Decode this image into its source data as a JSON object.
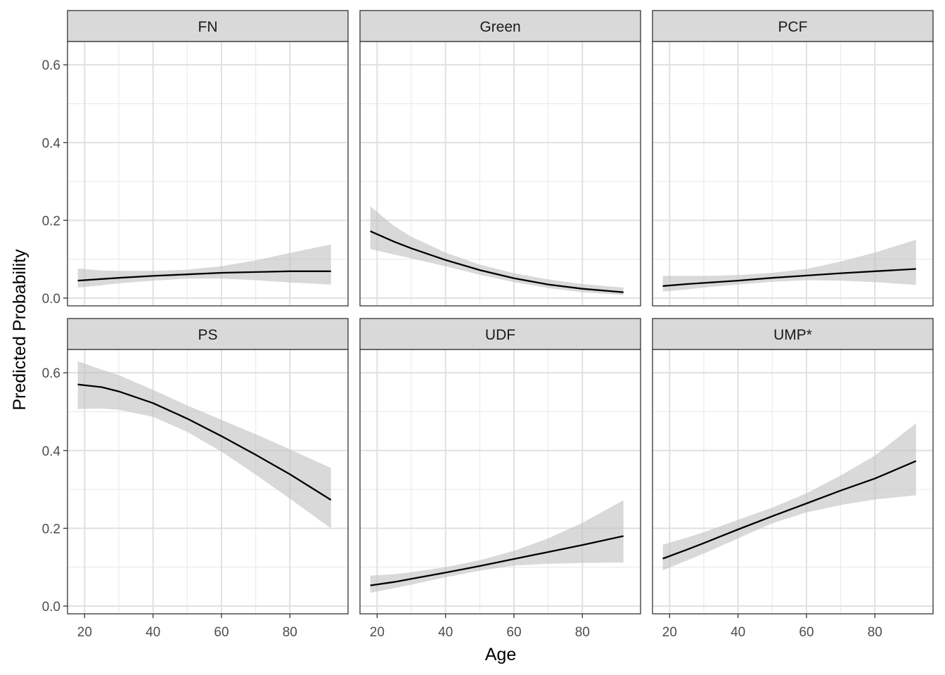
{
  "chart_data": {
    "type": "line",
    "layout": "facet-grid",
    "xlabel": "Age",
    "ylabel": "Predicted Probability",
    "xlim": [
      15,
      97
    ],
    "ylim": [
      -0.02,
      0.66
    ],
    "x_ticks": [
      20,
      40,
      60,
      80
    ],
    "y_ticks": [
      0.0,
      0.2,
      0.4,
      0.6
    ],
    "y_tick_labels": [
      "0.0",
      "0.2",
      "0.4",
      "0.6"
    ],
    "grid": true,
    "line_color": "#000000",
    "ribbon_color": "#bfbfbf",
    "strip_color": "#d9d9d9",
    "x": [
      18,
      25,
      30,
      40,
      50,
      60,
      70,
      80,
      92
    ],
    "panels": [
      {
        "name": "FN",
        "y": [
          0.045,
          0.049,
          0.052,
          0.057,
          0.061,
          0.065,
          0.067,
          0.069,
          0.069
        ],
        "lower": [
          0.027,
          0.033,
          0.038,
          0.045,
          0.05,
          0.05,
          0.046,
          0.04,
          0.035
        ],
        "upper": [
          0.076,
          0.071,
          0.07,
          0.07,
          0.073,
          0.082,
          0.097,
          0.116,
          0.138
        ]
      },
      {
        "name": "Green",
        "y": [
          0.172,
          0.145,
          0.128,
          0.098,
          0.072,
          0.051,
          0.035,
          0.024,
          0.015
        ],
        "lower": [
          0.126,
          0.112,
          0.102,
          0.082,
          0.06,
          0.041,
          0.026,
          0.015,
          0.008
        ],
        "upper": [
          0.236,
          0.185,
          0.158,
          0.117,
          0.086,
          0.064,
          0.048,
          0.036,
          0.027
        ]
      },
      {
        "name": "PCF",
        "y": [
          0.031,
          0.036,
          0.039,
          0.045,
          0.052,
          0.058,
          0.064,
          0.069,
          0.075
        ],
        "lower": [
          0.017,
          0.022,
          0.027,
          0.035,
          0.042,
          0.046,
          0.045,
          0.041,
          0.034
        ],
        "upper": [
          0.057,
          0.057,
          0.057,
          0.059,
          0.065,
          0.075,
          0.094,
          0.117,
          0.15
        ]
      },
      {
        "name": "PS",
        "y": [
          0.57,
          0.563,
          0.552,
          0.522,
          0.482,
          0.437,
          0.389,
          0.339,
          0.273
        ],
        "lower": [
          0.507,
          0.508,
          0.505,
          0.487,
          0.448,
          0.397,
          0.338,
          0.276,
          0.2
        ],
        "upper": [
          0.63,
          0.608,
          0.594,
          0.556,
          0.516,
          0.479,
          0.442,
          0.403,
          0.355
        ]
      },
      {
        "name": "UDF",
        "y": [
          0.053,
          0.062,
          0.07,
          0.086,
          0.103,
          0.121,
          0.139,
          0.157,
          0.18
        ],
        "lower": [
          0.034,
          0.046,
          0.055,
          0.074,
          0.091,
          0.104,
          0.109,
          0.111,
          0.112
        ],
        "upper": [
          0.078,
          0.082,
          0.087,
          0.1,
          0.118,
          0.142,
          0.174,
          0.214,
          0.272
        ]
      },
      {
        "name": "UMP*",
        "y": [
          0.122,
          0.145,
          0.162,
          0.197,
          0.231,
          0.264,
          0.297,
          0.328,
          0.373
        ],
        "lower": [
          0.092,
          0.117,
          0.135,
          0.174,
          0.213,
          0.241,
          0.26,
          0.274,
          0.285
        ],
        "upper": [
          0.158,
          0.176,
          0.19,
          0.222,
          0.253,
          0.29,
          0.336,
          0.387,
          0.47
        ]
      }
    ]
  }
}
